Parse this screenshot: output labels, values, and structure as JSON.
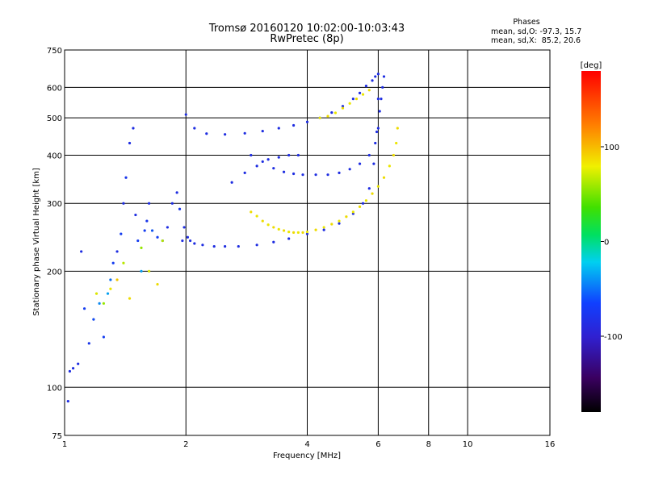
{
  "chart_data": {
    "type": "scatter",
    "title": "Tromsø 20160120 10:02:00-10:03:43",
    "subtitle": "RwPretec (8p)",
    "xlabel": "Frequency [MHz]",
    "ylabel": "Stationary phase Virtual Height [km]",
    "x_scale": "log",
    "y_scale": "log",
    "xlim": [
      1,
      16
    ],
    "ylim": [
      75,
      750
    ],
    "x_ticks": [
      1,
      2,
      4,
      6,
      8,
      10,
      16
    ],
    "y_ticks": [
      75,
      100,
      200,
      300,
      400,
      500,
      600,
      750
    ],
    "grid": true,
    "phases_box": {
      "heading": "Phases",
      "o_line": "mean, sd,O: -97.3, 15.7",
      "x_line": "mean, sd,X:  85.2, 20.6"
    },
    "colorbar": {
      "label": "[deg]",
      "ticks": [
        100,
        0,
        -100
      ],
      "range": [
        -180,
        180
      ]
    },
    "colors": {
      "o_mode": "#1a32e6",
      "x_mode": "#e8e200",
      "grid": "#000000"
    },
    "series": [
      {
        "x": [
          1.02,
          1.03,
          1.05,
          1.08,
          1.1,
          1.12,
          1.15,
          1.18,
          1.22,
          1.25,
          1.28,
          1.3,
          1.32,
          1.35,
          1.38,
          1.4,
          1.42,
          1.45,
          1.48,
          1.5,
          1.52,
          1.55,
          1.58,
          1.6,
          1.62,
          1.65,
          1.7,
          1.75,
          1.8,
          1.85,
          1.9,
          1.93,
          1.96,
          1.98,
          2.02,
          2.05,
          2.1,
          2.2,
          2.35,
          2.5,
          2.7,
          3.0,
          3.3,
          3.6,
          4.0,
          4.4,
          4.8,
          5.2,
          5.5,
          5.7,
          5.85,
          5.95,
          6.0,
          2.0,
          2.1,
          2.25,
          2.5,
          2.8,
          3.1,
          3.4,
          3.7,
          4.0,
          4.3,
          4.6,
          4.9,
          5.2,
          5.4,
          5.6,
          5.8,
          5.9,
          6.0,
          2.6,
          2.8,
          3.0,
          3.2,
          3.4,
          3.6,
          3.8,
          2.9,
          3.1,
          3.3,
          3.5,
          3.7,
          3.9,
          4.2,
          4.5,
          4.8,
          5.1,
          5.4,
          5.7,
          5.9,
          6.0,
          6.05,
          6.1,
          6.15,
          6.2
        ],
        "y": [
          92,
          110,
          112,
          115,
          225,
          160,
          130,
          150,
          165,
          135,
          175,
          190,
          210,
          225,
          250,
          300,
          350,
          430,
          470,
          280,
          240,
          200,
          255,
          270,
          300,
          255,
          245,
          240,
          260,
          300,
          320,
          290,
          240,
          260,
          245,
          240,
          236,
          234,
          232,
          232,
          232,
          234,
          238,
          243,
          250,
          256,
          266,
          282,
          300,
          328,
          380,
          460,
          560,
          510,
          470,
          455,
          453,
          456,
          462,
          470,
          478,
          488,
          500,
          516,
          536,
          560,
          580,
          605,
          625,
          640,
          650,
          340,
          360,
          375,
          390,
          395,
          400,
          400,
          400,
          385,
          370,
          362,
          358,
          356,
          356,
          356,
          360,
          368,
          380,
          400,
          430,
          470,
          520,
          560,
          600,
          640
        ],
        "phase": [
          -110,
          -110,
          -110,
          -110,
          -110,
          -100,
          -105,
          -95,
          -70,
          -100,
          -60,
          -80,
          -100,
          -110,
          -100,
          -110,
          -105,
          -110,
          -110,
          -110,
          -100,
          -60,
          -100,
          -105,
          -110,
          -90,
          -100,
          -105,
          -110,
          -110,
          -110,
          -105,
          -110,
          -110,
          -110,
          -110,
          -110,
          -110,
          -110,
          -110,
          -110,
          -110,
          -110,
          -110,
          -110,
          -110,
          -110,
          -110,
          -110,
          -110,
          -110,
          -110,
          -110,
          -110,
          -110,
          -110,
          -110,
          -110,
          -110,
          -110,
          -110,
          -110,
          -110,
          -110,
          -110,
          -110,
          -110,
          -110,
          -110,
          -110,
          -110,
          -110,
          -110,
          -110,
          -110,
          -110,
          -110,
          -110,
          -110,
          -110,
          -110,
          -110,
          -110,
          -110,
          -110,
          -110,
          -110,
          -110,
          -110,
          -110,
          -110,
          -110,
          -110,
          -110,
          -110,
          -110
        ]
      },
      {
        "x": [
          2.9,
          3.0,
          3.1,
          3.2,
          3.3,
          3.4,
          3.5,
          3.6,
          3.7,
          3.8,
          3.9,
          4.0,
          4.2,
          4.4,
          4.6,
          4.8,
          5.0,
          5.2,
          5.4,
          5.6,
          5.8,
          6.0,
          6.2,
          6.4,
          6.55,
          6.65,
          6.7,
          4.3,
          4.5,
          4.7,
          4.9,
          5.1,
          5.3,
          5.5,
          5.7,
          1.2,
          1.25,
          1.3,
          1.35,
          1.4,
          1.45,
          1.55,
          1.62,
          1.7,
          1.75
        ],
        "y": [
          285,
          278,
          270,
          264,
          260,
          257,
          255,
          253,
          252,
          252,
          252,
          253,
          256,
          260,
          265,
          270,
          277,
          285,
          294,
          305,
          318,
          332,
          350,
          375,
          400,
          430,
          470,
          500,
          505,
          515,
          530,
          545,
          560,
          575,
          590,
          175,
          165,
          180,
          190,
          210,
          170,
          230,
          200,
          185,
          240
        ],
        "phase": [
          90,
          85,
          90,
          85,
          90,
          85,
          90,
          85,
          90,
          85,
          90,
          85,
          90,
          85,
          90,
          85,
          90,
          85,
          90,
          85,
          90,
          85,
          90,
          85,
          90,
          85,
          90,
          85,
          90,
          85,
          90,
          85,
          90,
          85,
          90,
          80,
          60,
          85,
          100,
          70,
          90,
          60,
          80,
          90,
          70
        ]
      }
    ]
  }
}
